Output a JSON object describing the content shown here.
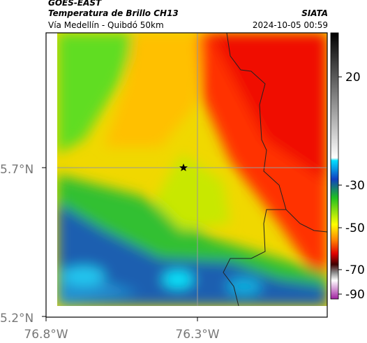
{
  "header": {
    "source": "GOES-EAST",
    "title": "Temperatura de Brillo CH13",
    "brand": "SIATA",
    "subtitle": "Vía Medellín - Quibdó 50km",
    "timestamp": "2024-10-05 00:59"
  },
  "map": {
    "lat_ticks": [
      "5.7°N",
      "5.2°N"
    ],
    "lon_ticks": [
      "76.8°W",
      "76.3°W"
    ]
  },
  "colorbar": {
    "ticks": [
      20,
      -30,
      -50,
      -70,
      -90
    ]
  }
}
